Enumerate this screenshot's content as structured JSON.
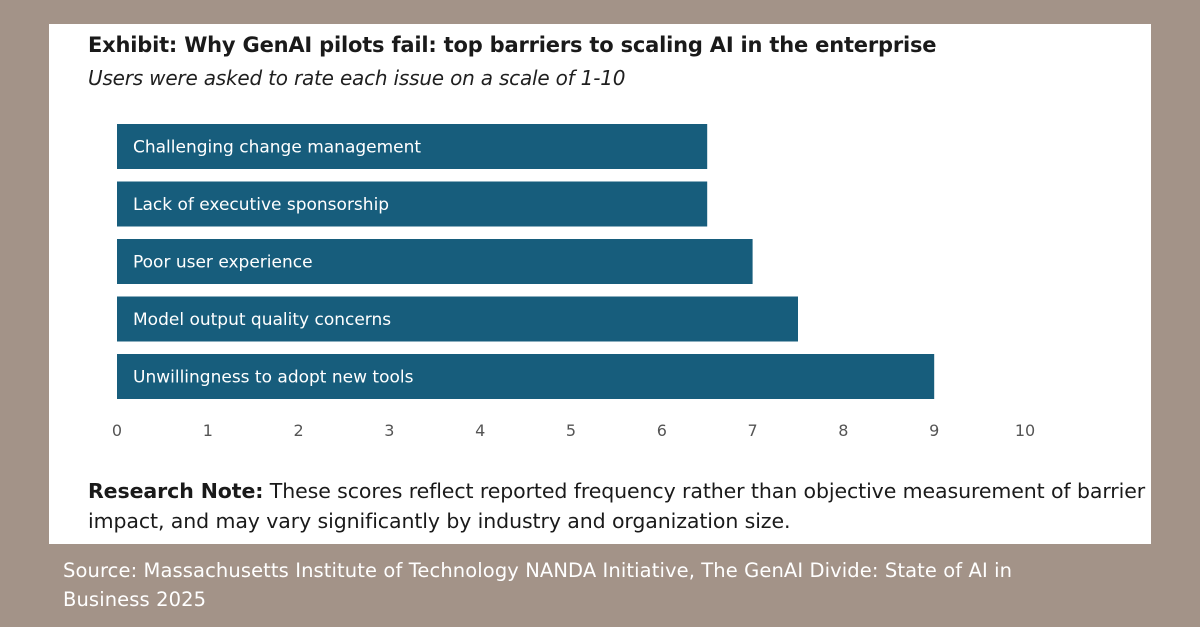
{
  "chart_data": {
    "type": "bar",
    "orientation": "horizontal",
    "title": "Exhibit: Why GenAI pilots fail: top barriers to scaling AI in the enterprise",
    "subtitle": "Users were asked to rate each issue on a scale of 1-10",
    "categories": [
      "Challenging change management",
      "Lack of executive sponsorship",
      "Poor user experience",
      "Model output quality concerns",
      "Unwillingness to adopt new tools"
    ],
    "values": [
      6.5,
      6.5,
      7.0,
      7.5,
      9.0
    ],
    "xlim": [
      0,
      10
    ],
    "xticks": [
      "0",
      "1",
      "2",
      "3",
      "4",
      "5",
      "6",
      "7",
      "8",
      "9",
      "10"
    ],
    "bar_color": "#175d7c",
    "label_color": "#ffffff",
    "xlabel": "",
    "ylabel": "",
    "grid": false,
    "legend": "none"
  },
  "note": {
    "label": "Research Note:",
    "text": " These scores reflect reported frequency rather than objective measurement of barrier impact, and may vary significantly by industry and organization size."
  },
  "source": "Source: Massachusetts Institute of Technology NANDA Initiative, The GenAI Divide: State of AI in Business 2025",
  "colors": {
    "background": "#a39388",
    "card": "#ffffff",
    "text": "#1a1a1a"
  }
}
